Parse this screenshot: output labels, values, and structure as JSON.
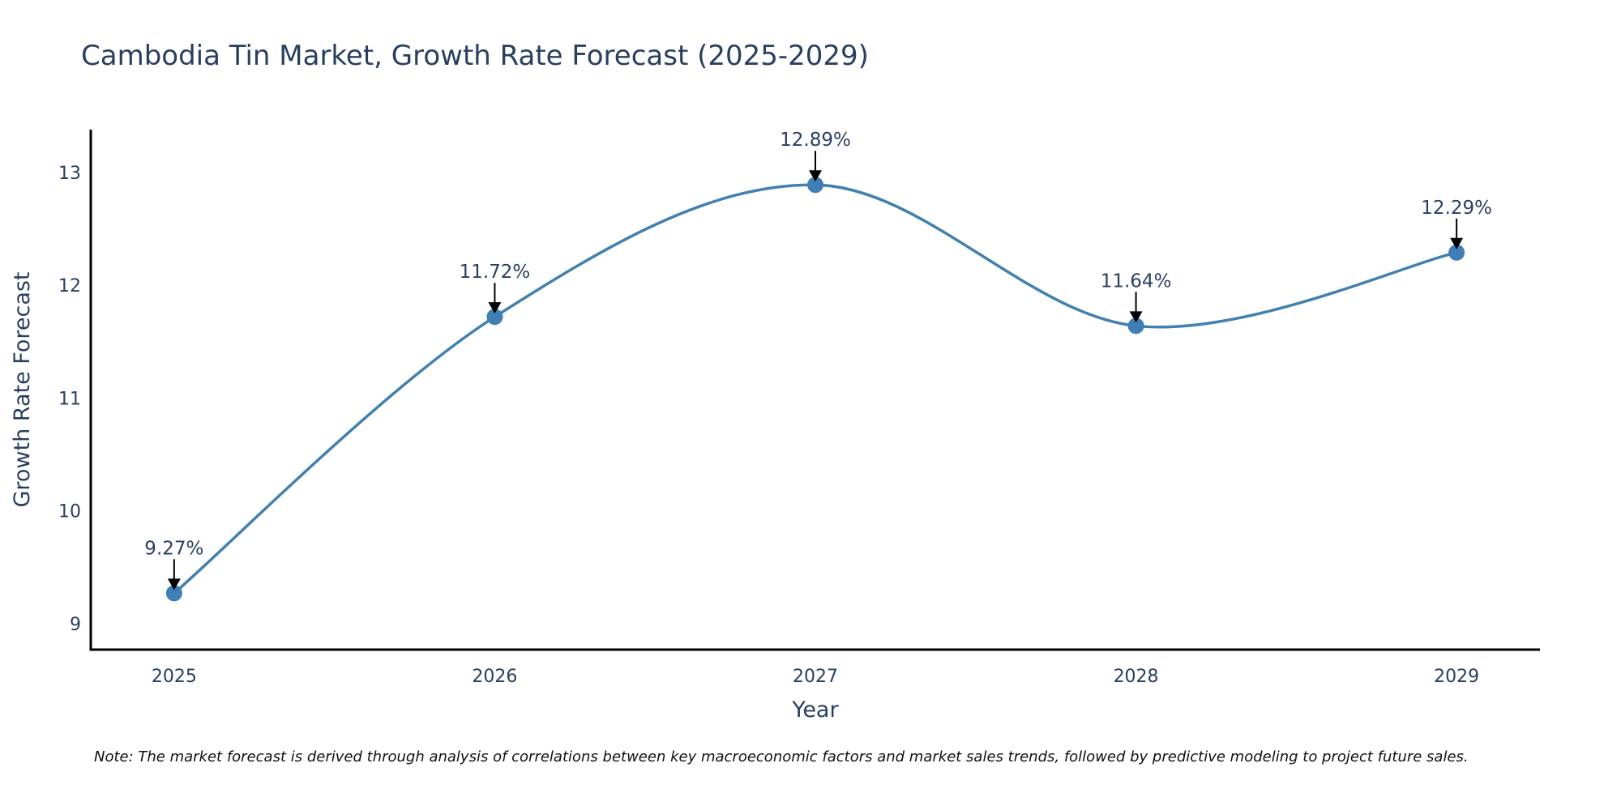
{
  "colors": {
    "line": "#4280ae",
    "marker": "#3f7fb5",
    "text": "#2a3f5f",
    "axis": "#000000",
    "arrow": "#000000"
  },
  "chart_data": {
    "type": "line",
    "title": "Cambodia Tin Market, Growth Rate Forecast (2025-2029)",
    "xlabel": "Year",
    "ylabel": "Growth Rate Forecast",
    "categories": [
      "2025",
      "2026",
      "2027",
      "2028",
      "2029"
    ],
    "x": [
      2025,
      2026,
      2027,
      2028,
      2029
    ],
    "series": [
      {
        "name": "Growth Rate Forecast",
        "values": [
          9.27,
          11.72,
          12.89,
          11.64,
          12.29
        ]
      }
    ],
    "data_labels": [
      "9.27%",
      "11.72%",
      "12.89%",
      "11.64%",
      "12.29%"
    ],
    "ylim": [
      8.77,
      13.38
    ],
    "yticks": [
      9,
      10,
      11,
      12,
      13
    ],
    "ytick_labels": [
      "9",
      "10",
      "11",
      "12",
      "13"
    ],
    "xlim": [
      2024.74,
      2029.26
    ],
    "grid": false,
    "line_shape": "spline",
    "note": "Note: The market forecast is derived through analysis of correlations between key macroeconomic factors and market sales trends, followed by predictive modeling to project future sales."
  }
}
